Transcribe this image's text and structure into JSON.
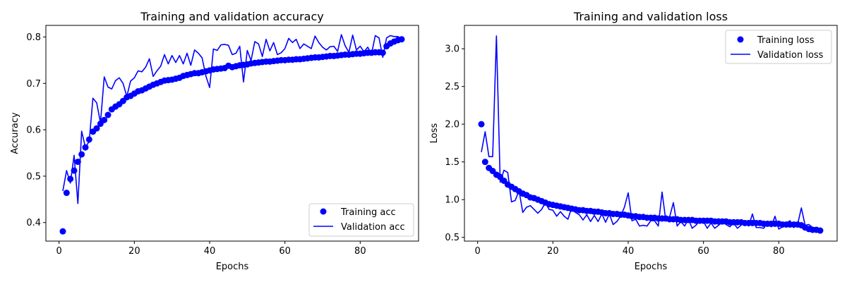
{
  "colors": {
    "series": "#0000ff",
    "axes": "#000000",
    "legend_border": "#cccccc"
  },
  "chart_data": [
    {
      "type": "line",
      "title": "Training and validation accuracy",
      "xlabel": "Epochs",
      "ylabel": "Accuracy",
      "xlim": [
        -3.5,
        95.5
      ],
      "ylim": [
        0.36,
        0.825
      ],
      "xticks": [
        0,
        20,
        40,
        60,
        80
      ],
      "xtick_labels": [
        "0",
        "20",
        "40",
        "60",
        "80"
      ],
      "yticks": [
        0.4,
        0.5,
        0.6,
        0.7,
        0.8
      ],
      "ytick_labels": [
        "0.4",
        "0.5",
        "0.6",
        "0.7",
        "0.8"
      ],
      "grid": false,
      "legend_position": "lower-right",
      "series": [
        {
          "name": "Training acc",
          "style": "markers",
          "x": [
            1,
            2,
            3,
            4,
            5,
            6,
            7,
            8,
            9,
            10,
            11,
            12,
            13,
            14,
            15,
            16,
            17,
            18,
            19,
            20,
            21,
            22,
            23,
            24,
            25,
            26,
            27,
            28,
            29,
            30,
            31,
            32,
            33,
            34,
            35,
            36,
            37,
            38,
            39,
            40,
            41,
            42,
            43,
            44,
            45,
            46,
            47,
            48,
            49,
            50,
            51,
            52,
            53,
            54,
            55,
            56,
            57,
            58,
            59,
            60,
            61,
            62,
            63,
            64,
            65,
            66,
            67,
            68,
            69,
            70,
            71,
            72,
            73,
            74,
            75,
            76,
            77,
            78,
            79,
            80,
            81,
            82,
            83,
            84,
            85,
            86,
            87,
            88,
            89,
            90,
            91
          ],
          "y": [
            0.381,
            0.464,
            0.494,
            0.512,
            0.531,
            0.547,
            0.562,
            0.579,
            0.596,
            0.603,
            0.613,
            0.621,
            0.632,
            0.644,
            0.65,
            0.655,
            0.662,
            0.67,
            0.673,
            0.678,
            0.683,
            0.685,
            0.689,
            0.693,
            0.697,
            0.7,
            0.703,
            0.706,
            0.707,
            0.708,
            0.71,
            0.712,
            0.716,
            0.718,
            0.72,
            0.722,
            0.722,
            0.724,
            0.726,
            0.728,
            0.73,
            0.731,
            0.732,
            0.733,
            0.738,
            0.735,
            0.737,
            0.739,
            0.74,
            0.741,
            0.743,
            0.744,
            0.745,
            0.746,
            0.747,
            0.747,
            0.748,
            0.749,
            0.75,
            0.75,
            0.751,
            0.751,
            0.752,
            0.752,
            0.753,
            0.754,
            0.755,
            0.756,
            0.756,
            0.757,
            0.758,
            0.759,
            0.759,
            0.76,
            0.761,
            0.762,
            0.762,
            0.763,
            0.764,
            0.764,
            0.765,
            0.766,
            0.766,
            0.767,
            0.767,
            0.766,
            0.78,
            0.786,
            0.79,
            0.793,
            0.795
          ]
        },
        {
          "name": "Validation acc",
          "style": "line",
          "x": [
            1,
            2,
            3,
            4,
            5,
            6,
            7,
            8,
            9,
            10,
            11,
            12,
            13,
            14,
            15,
            16,
            17,
            18,
            19,
            20,
            21,
            22,
            23,
            24,
            25,
            26,
            27,
            28,
            29,
            30,
            31,
            32,
            33,
            34,
            35,
            36,
            37,
            38,
            39,
            40,
            41,
            42,
            43,
            44,
            45,
            46,
            47,
            48,
            49,
            50,
            51,
            52,
            53,
            54,
            55,
            56,
            57,
            58,
            59,
            60,
            61,
            62,
            63,
            64,
            65,
            66,
            67,
            68,
            69,
            70,
            71,
            72,
            73,
            74,
            75,
            76,
            77,
            78,
            79,
            80,
            81,
            82,
            83,
            84,
            85,
            86,
            87,
            88,
            89,
            90,
            91
          ],
          "y": [
            0.468,
            0.512,
            0.485,
            0.545,
            0.441,
            0.597,
            0.562,
            0.575,
            0.668,
            0.658,
            0.615,
            0.714,
            0.692,
            0.688,
            0.706,
            0.712,
            0.7,
            0.672,
            0.705,
            0.712,
            0.727,
            0.725,
            0.735,
            0.753,
            0.715,
            0.727,
            0.737,
            0.762,
            0.742,
            0.76,
            0.745,
            0.76,
            0.742,
            0.765,
            0.739,
            0.772,
            0.765,
            0.755,
            0.716,
            0.691,
            0.774,
            0.771,
            0.783,
            0.784,
            0.782,
            0.762,
            0.765,
            0.78,
            0.703,
            0.771,
            0.749,
            0.79,
            0.785,
            0.758,
            0.795,
            0.77,
            0.788,
            0.762,
            0.766,
            0.775,
            0.797,
            0.788,
            0.795,
            0.775,
            0.785,
            0.78,
            0.775,
            0.802,
            0.788,
            0.778,
            0.772,
            0.779,
            0.78,
            0.769,
            0.805,
            0.781,
            0.767,
            0.804,
            0.772,
            0.78,
            0.768,
            0.778,
            0.763,
            0.803,
            0.798,
            0.756,
            0.798,
            0.803,
            0.801,
            0.801,
            0.795
          ]
        }
      ]
    },
    {
      "type": "line",
      "title": "Training and validation loss",
      "xlabel": "Epochs",
      "ylabel": "Loss",
      "xlim": [
        -3.5,
        95.5
      ],
      "ylim": [
        0.45,
        3.31
      ],
      "xticks": [
        0,
        20,
        40,
        60,
        80
      ],
      "xtick_labels": [
        "0",
        "20",
        "40",
        "60",
        "80"
      ],
      "yticks": [
        0.5,
        1.0,
        1.5,
        2.0,
        2.5,
        3.0
      ],
      "ytick_labels": [
        "0.5",
        "1.0",
        "1.5",
        "2.0",
        "2.5",
        "3.0"
      ],
      "grid": false,
      "legend_position": "upper-right",
      "series": [
        {
          "name": "Training loss",
          "style": "markers",
          "x": [
            1,
            2,
            3,
            4,
            5,
            6,
            7,
            8,
            9,
            10,
            11,
            12,
            13,
            14,
            15,
            16,
            17,
            18,
            19,
            20,
            21,
            22,
            23,
            24,
            25,
            26,
            27,
            28,
            29,
            30,
            31,
            32,
            33,
            34,
            35,
            36,
            37,
            38,
            39,
            40,
            41,
            42,
            43,
            44,
            45,
            46,
            47,
            48,
            49,
            50,
            51,
            52,
            53,
            54,
            55,
            56,
            57,
            58,
            59,
            60,
            61,
            62,
            63,
            64,
            65,
            66,
            67,
            68,
            69,
            70,
            71,
            72,
            73,
            74,
            75,
            76,
            77,
            78,
            79,
            80,
            81,
            82,
            83,
            84,
            85,
            86,
            87,
            88,
            89,
            90,
            91
          ],
          "y": [
            2.0,
            1.5,
            1.42,
            1.38,
            1.33,
            1.3,
            1.25,
            1.2,
            1.17,
            1.14,
            1.11,
            1.08,
            1.06,
            1.03,
            1.02,
            1.0,
            0.98,
            0.96,
            0.94,
            0.93,
            0.92,
            0.91,
            0.9,
            0.89,
            0.88,
            0.87,
            0.86,
            0.86,
            0.85,
            0.85,
            0.84,
            0.84,
            0.83,
            0.82,
            0.82,
            0.81,
            0.81,
            0.8,
            0.8,
            0.79,
            0.78,
            0.78,
            0.77,
            0.77,
            0.76,
            0.76,
            0.76,
            0.75,
            0.75,
            0.75,
            0.74,
            0.74,
            0.74,
            0.73,
            0.73,
            0.73,
            0.73,
            0.72,
            0.72,
            0.72,
            0.72,
            0.72,
            0.71,
            0.71,
            0.71,
            0.71,
            0.7,
            0.7,
            0.7,
            0.7,
            0.69,
            0.69,
            0.69,
            0.69,
            0.69,
            0.68,
            0.68,
            0.68,
            0.68,
            0.68,
            0.67,
            0.67,
            0.67,
            0.67,
            0.67,
            0.66,
            0.63,
            0.61,
            0.6,
            0.6,
            0.59
          ]
        },
        {
          "name": "Validation loss",
          "style": "line",
          "x": [
            1,
            2,
            3,
            4,
            5,
            6,
            7,
            8,
            9,
            10,
            11,
            12,
            13,
            14,
            15,
            16,
            17,
            18,
            19,
            20,
            21,
            22,
            23,
            24,
            25,
            26,
            27,
            28,
            29,
            30,
            31,
            32,
            33,
            34,
            35,
            36,
            37,
            38,
            39,
            40,
            41,
            42,
            43,
            44,
            45,
            46,
            47,
            48,
            49,
            50,
            51,
            52,
            53,
            54,
            55,
            56,
            57,
            58,
            59,
            60,
            61,
            62,
            63,
            64,
            65,
            66,
            67,
            68,
            69,
            70,
            71,
            72,
            73,
            74,
            75,
            76,
            77,
            78,
            79,
            80,
            81,
            82,
            83,
            84,
            85,
            86,
            87,
            88,
            89,
            90,
            91
          ],
          "y": [
            1.63,
            1.9,
            1.57,
            1.57,
            3.17,
            1.23,
            1.39,
            1.36,
            0.97,
            0.99,
            1.12,
            0.83,
            0.9,
            0.92,
            0.87,
            0.82,
            0.87,
            0.96,
            0.87,
            0.86,
            0.78,
            0.84,
            0.78,
            0.74,
            0.9,
            0.83,
            0.8,
            0.73,
            0.8,
            0.71,
            0.79,
            0.71,
            0.81,
            0.7,
            0.81,
            0.67,
            0.71,
            0.78,
            0.9,
            1.09,
            0.72,
            0.74,
            0.65,
            0.66,
            0.65,
            0.72,
            0.72,
            0.65,
            1.1,
            0.72,
            0.77,
            0.96,
            0.65,
            0.71,
            0.65,
            0.74,
            0.62,
            0.66,
            0.72,
            0.71,
            0.62,
            0.69,
            0.62,
            0.66,
            0.7,
            0.67,
            0.64,
            0.69,
            0.62,
            0.66,
            0.72,
            0.65,
            0.81,
            0.63,
            0.63,
            0.62,
            0.69,
            0.64,
            0.78,
            0.61,
            0.64,
            0.69,
            0.72,
            0.63,
            0.67,
            0.89,
            0.66,
            0.67,
            0.63,
            0.63,
            0.59
          ]
        }
      ]
    }
  ]
}
